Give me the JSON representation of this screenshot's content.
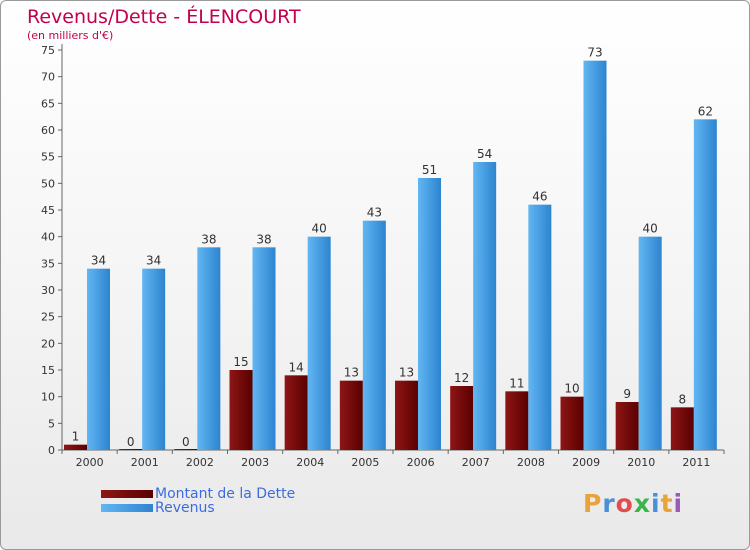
{
  "header": {
    "title": "Revenus/Dette - ÉLENCOURT",
    "subtitle": "(en milliers d'€)"
  },
  "chart_data": {
    "type": "bar",
    "title": "Revenus/Dette - ÉLENCOURT",
    "ylabel": "(en milliers d'€)",
    "xlabel": "",
    "ylim": [
      0,
      75
    ],
    "yticks": [
      0,
      5,
      10,
      15,
      20,
      25,
      30,
      35,
      40,
      45,
      50,
      55,
      60,
      65,
      70,
      75
    ],
    "grid": false,
    "legend_position": "bottom-left",
    "categories": [
      "2000",
      "2001",
      "2002",
      "2003",
      "2004",
      "2005",
      "2006",
      "2007",
      "2008",
      "2009",
      "2010",
      "2011"
    ],
    "series": [
      {
        "name": "Montant de la Dette",
        "color": "#7a0a0a",
        "values": [
          1,
          0,
          0,
          15,
          14,
          13,
          13,
          12,
          11,
          10,
          9,
          8
        ]
      },
      {
        "name": "Revenus",
        "color": "#4aa3e8",
        "values": [
          34,
          34,
          38,
          38,
          40,
          43,
          51,
          54,
          46,
          73,
          40,
          62
        ]
      }
    ]
  },
  "legend": {
    "items": [
      {
        "label": "Montant de la Dette",
        "color": "#6b0000"
      },
      {
        "label": "Revenus",
        "color": "#3d9be3"
      }
    ]
  },
  "brand": {
    "letters": [
      "P",
      "r",
      "o",
      "x",
      "i",
      "t",
      "i"
    ],
    "colors": [
      "#e8a33a",
      "#4a90d9",
      "#e44b4b",
      "#3bb54a",
      "#4a90d9",
      "#e8a33a",
      "#9b59b6"
    ]
  }
}
